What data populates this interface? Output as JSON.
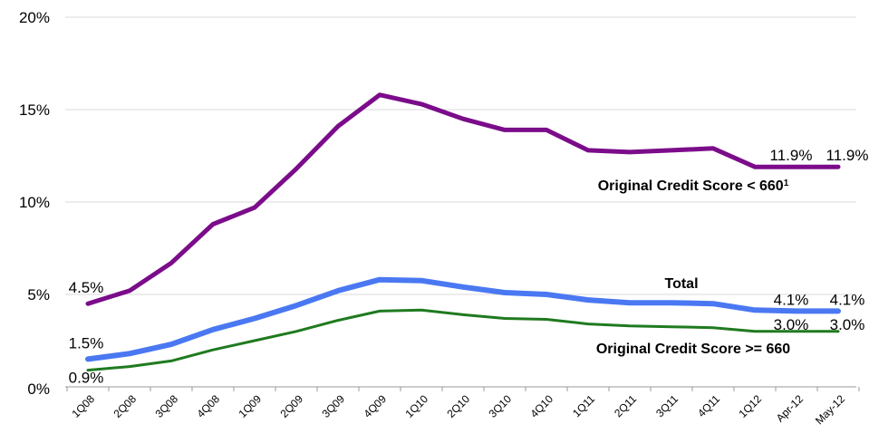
{
  "chart_data": {
    "type": "line",
    "title": "",
    "xlabel": "",
    "ylabel": "",
    "ylim": [
      0,
      20
    ],
    "y_ticks": [
      "0%",
      "5%",
      "10%",
      "15%",
      "20%"
    ],
    "grid": "horizontal",
    "legend": "none (series labeled inline)",
    "categories": [
      "1Q08",
      "2Q08",
      "3Q08",
      "4Q08",
      "1Q09",
      "2Q09",
      "3Q09",
      "4Q09",
      "1Q10",
      "2Q10",
      "3Q10",
      "4Q10",
      "1Q11",
      "2Q11",
      "3Q11",
      "4Q11",
      "1Q12",
      "Apr-12",
      "May-12"
    ],
    "series": [
      {
        "name": "Original Credit Score < 660",
        "name_superscript": "1",
        "color": "#7B0C8A",
        "values": [
          4.5,
          5.2,
          6.7,
          8.8,
          9.7,
          11.8,
          14.1,
          15.8,
          15.3,
          14.5,
          13.9,
          13.9,
          12.8,
          12.7,
          12.8,
          12.9,
          11.9,
          11.9,
          11.9
        ],
        "labels": {
          "0": "4.5%",
          "17": "11.9%",
          "18": "11.9%"
        }
      },
      {
        "name": "Total",
        "color": "#4A78F2",
        "values": [
          1.5,
          1.8,
          2.3,
          3.1,
          3.7,
          4.4,
          5.2,
          5.8,
          5.75,
          5.4,
          5.1,
          5.0,
          4.7,
          4.55,
          4.55,
          4.5,
          4.15,
          4.1,
          4.1
        ],
        "labels": {
          "0": "1.5%",
          "17": "4.1%",
          "18": "4.1%"
        }
      },
      {
        "name": "Original Credit Score >= 660",
        "color": "#1F7A1F",
        "values": [
          0.9,
          1.1,
          1.4,
          2.0,
          2.5,
          3.0,
          3.6,
          4.1,
          4.15,
          3.9,
          3.7,
          3.65,
          3.4,
          3.3,
          3.25,
          3.2,
          3.0,
          3.0,
          3.0
        ],
        "labels": {
          "0": "0.9%",
          "17": "3.0%",
          "18": "3.0%"
        }
      }
    ]
  }
}
